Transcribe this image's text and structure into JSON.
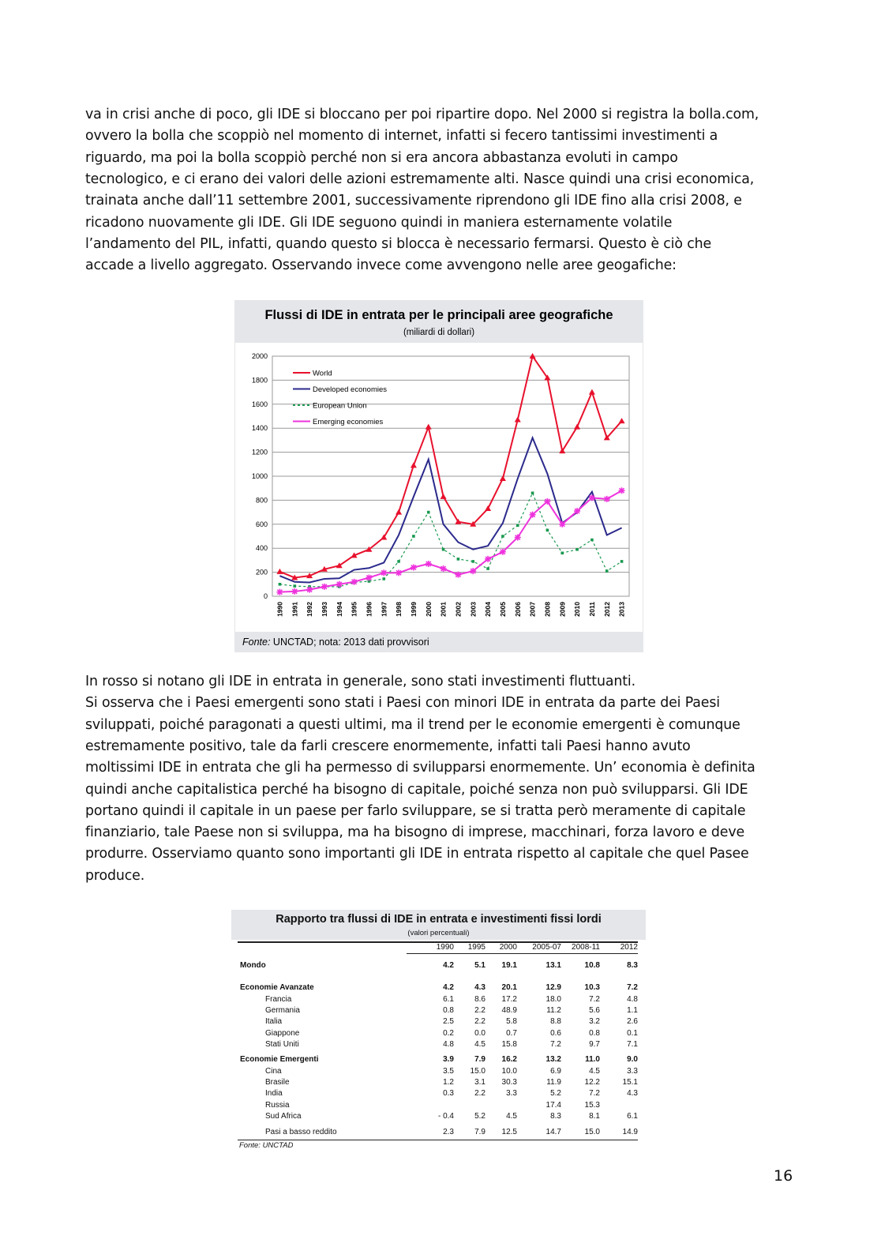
{
  "text_top": [
    "va in crisi anche di poco, gli IDE si bloccano per poi ripartire dopo. Nel 2000 si registra la bolla.com,",
    "ovvero la bolla che scoppiò nel momento di internet, infatti si fecero tantissimi investimenti a",
    "riguardo, ma poi la bolla scoppiò perché non si era ancora abbastanza evoluti in campo",
    "tecnologico, e ci erano dei valori delle azioni estremamente alti. Nasce quindi una crisi economica,",
    "trainata anche dall’11 settembre 2001, successivamente riprendono gli IDE fino alla crisi 2008, e",
    "ricadono nuovamente gli IDE. Gli IDE seguono quindi in maniera esternamente volatile",
    "l’andamento del PIL, infatti, quando questo si blocca è necessario fermarsi. Questo è ciò che",
    "accade a livello aggregato. Osservando invece come avvengono nelle aree geogafiche:"
  ],
  "chart": {
    "type": "line",
    "title": "Flussi di IDE in entrata per le principali aree geografiche",
    "subtitle": "(miliardi di dollari)",
    "source_label": "Fonte:",
    "source_text": "UNCTAD; nota: 2013 dati provvisori",
    "categories": [
      "1990",
      "1991",
      "1992",
      "1993",
      "1994",
      "1995",
      "1996",
      "1997",
      "1998",
      "1999",
      "2000",
      "2001",
      "2002",
      "2003",
      "2004",
      "2005",
      "2006",
      "2007",
      "2008",
      "2009",
      "2010",
      "2011",
      "2012",
      "2013"
    ],
    "ylim": [
      0,
      2000
    ],
    "yticks": [
      0,
      200,
      400,
      600,
      800,
      1000,
      1200,
      1400,
      1600,
      1800,
      2000
    ],
    "grid": true,
    "series": [
      {
        "name": "World",
        "color": "#e8112d",
        "marker": "triangle",
        "values": [
          205,
          155,
          170,
          225,
          255,
          340,
          390,
          490,
          700,
          1090,
          1410,
          830,
          620,
          600,
          730,
          980,
          1470,
          2000,
          1820,
          1210,
          1410,
          1700,
          1320,
          1460
        ]
      },
      {
        "name": "Developed economies",
        "color": "#2b2a8c",
        "marker": "none",
        "values": [
          170,
          120,
          115,
          145,
          150,
          220,
          235,
          280,
          510,
          830,
          1140,
          600,
          450,
          390,
          420,
          610,
          980,
          1320,
          1020,
          610,
          700,
          870,
          510,
          570
        ]
      },
      {
        "name": "European Union",
        "color": "#1a9950",
        "marker": "square",
        "values": [
          100,
          85,
          80,
          80,
          80,
          115,
          125,
          145,
          290,
          500,
          700,
          390,
          310,
          290,
          230,
          500,
          590,
          860,
          550,
          360,
          390,
          470,
          210,
          290
        ]
      },
      {
        "name": "Emerging economies",
        "color": "#ee33dd",
        "marker": "star",
        "values": [
          35,
          40,
          55,
          80,
          100,
          120,
          155,
          195,
          195,
          240,
          270,
          230,
          180,
          210,
          310,
          370,
          490,
          680,
          790,
          600,
          710,
          820,
          810,
          880
        ]
      }
    ]
  },
  "text_mid": [
    "In rosso si notano gli IDE in entrata in generale, sono stati investimenti fluttuanti.",
    "Si osserva che i Paesi emergenti sono stati i Paesi con minori IDE in entrata da parte dei Paesi",
    "sviluppati, poiché paragonati a questi ultimi, ma il trend per le economie emergenti è comunque",
    "estremamente positivo, tale da farli crescere enormemente, infatti tali Paesi hanno avuto",
    "moltissimi IDE in entrata che gli ha permesso di svilupparsi enormemente. Un’ economia è definita",
    "quindi anche capitalistica perché ha bisogno di capitale, poiché senza non può svilupparsi. Gli IDE",
    "portano quindi il capitale in un paese per farlo sviluppare, se si tratta però meramente di capitale",
    "finanziario, tale Paese non si sviluppa, ma ha bisogno di imprese, macchinari, forza lavoro e deve",
    "produrre. Osserviamo quanto sono importanti gli IDE in entrata rispetto al capitale che quel Pasee",
    "produce."
  ],
  "table": {
    "title": "Rapporto tra flussi di IDE in entrata e investimenti fissi lordi",
    "subtitle": "(valori percentuali)",
    "columns": [
      "1990",
      "1995",
      "2000",
      "2005-07",
      "2008-11",
      "2012"
    ],
    "rows": [
      {
        "label": "Mondo",
        "bold": true,
        "cells": [
          "4.2",
          "5.1",
          "19.1",
          "13.1",
          "10.8",
          "8.3"
        ]
      },
      {
        "label": "Economie Avanzate",
        "bold": true,
        "cells": [
          "4.2",
          "4.3",
          "20.1",
          "12.9",
          "10.3",
          "7.2"
        ]
      },
      {
        "label": "Francia",
        "bold": false,
        "cells": [
          "6.1",
          "8.6",
          "17.2",
          "18.0",
          "7.2",
          "4.8"
        ]
      },
      {
        "label": "Germania",
        "bold": false,
        "cells": [
          "0.8",
          "2.2",
          "48.9",
          "11.2",
          "5.6",
          "1.1"
        ]
      },
      {
        "label": "Italia",
        "bold": false,
        "cells": [
          "2.5",
          "2.2",
          "5.8",
          "8.8",
          "3.2",
          "2.6"
        ]
      },
      {
        "label": "Giappone",
        "bold": false,
        "cells": [
          "0.2",
          "0.0",
          "0.7",
          "0.6",
          "0.8",
          "0.1"
        ]
      },
      {
        "label": "Stati Uniti",
        "bold": false,
        "cells": [
          "4.8",
          "4.5",
          "15.8",
          "7.2",
          "9.7",
          "7.1"
        ]
      },
      {
        "label": "Economie Emergenti",
        "bold": true,
        "cells": [
          "3.9",
          "7.9",
          "16.2",
          "13.2",
          "11.0",
          "9.0"
        ]
      },
      {
        "label": "Cina",
        "bold": false,
        "cells": [
          "3.5",
          "15.0",
          "10.0",
          "6.9",
          "4.5",
          "3.3"
        ]
      },
      {
        "label": "Brasile",
        "bold": false,
        "cells": [
          "1.2",
          "3.1",
          "30.3",
          "11.9",
          "12.2",
          "15.1"
        ]
      },
      {
        "label": "India",
        "bold": false,
        "cells": [
          "0.3",
          "2.2",
          "3.3",
          "5.2",
          "7.2",
          "4.3"
        ]
      },
      {
        "label": "Russia",
        "bold": false,
        "cells": [
          null,
          null,
          null,
          "17.4",
          "15.3",
          null
        ]
      },
      {
        "label": "Sud Africa",
        "bold": false,
        "cells": [
          "- 0.4",
          "5.2",
          "4.5",
          "8.3",
          "8.1",
          "6.1"
        ]
      },
      {
        "label": "Pasi a basso reddito",
        "bold": false,
        "cells": [
          "2.3",
          "7.9",
          "12.5",
          "14.7",
          "15.0",
          "14.9"
        ]
      }
    ],
    "source": "Fonte: UNCTAD"
  },
  "page_number": "16"
}
